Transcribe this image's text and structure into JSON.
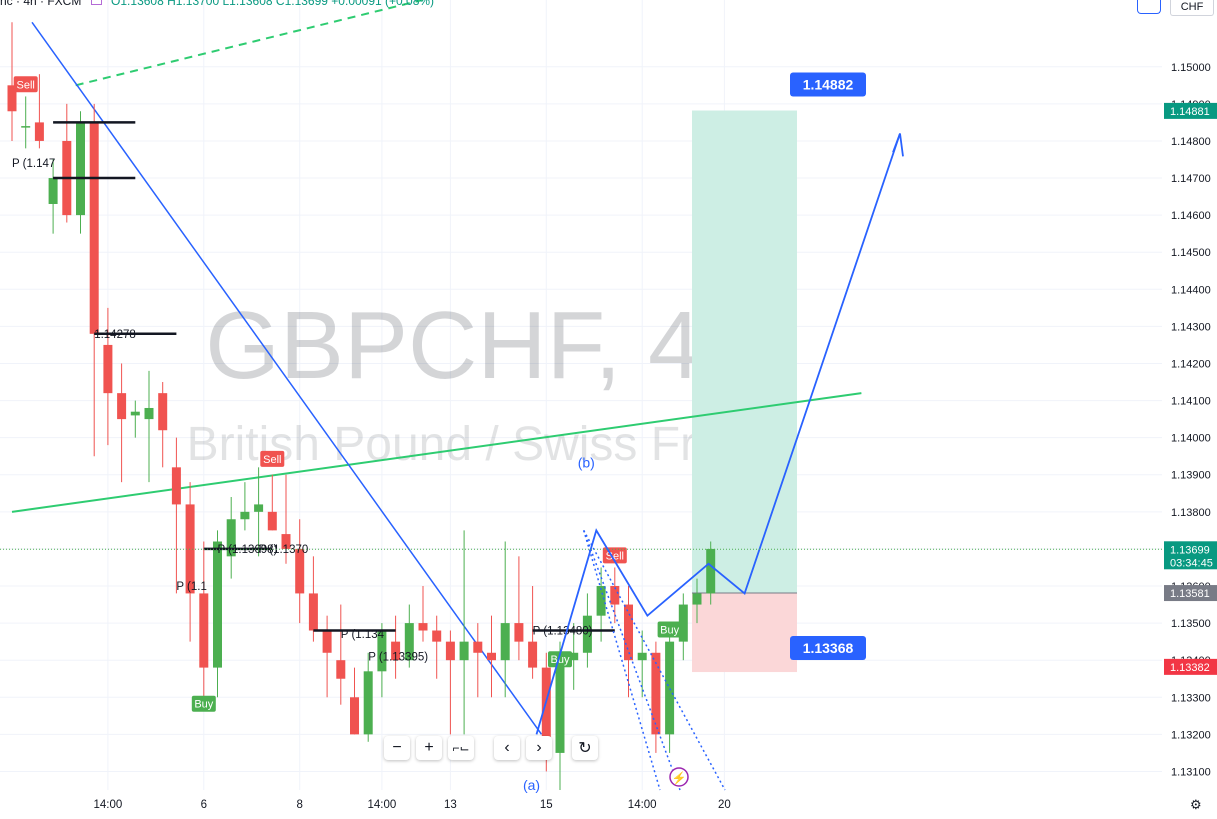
{
  "legend": {
    "symbol": "nc · 4h · FXCM",
    "open": "O1.13608",
    "high": "H1.13700",
    "low": "L1.13608",
    "close": "C1.13699",
    "change": "+0.00091 (+0.08%)"
  },
  "currency_button": "CHF",
  "watermark": {
    "title": "GBPCHF, 4h",
    "subtitle": "British Pound / Swiss Franc"
  },
  "colors": {
    "up": "#4caf50",
    "down": "#f05350",
    "grid": "#f0f3fa",
    "zone_profit": "#cdeee4",
    "zone_loss": "#fbd7d8",
    "pivot": "#2e8b57",
    "trendline": "#2ecc71",
    "projection": "#2962ff"
  },
  "chart_data": {
    "type": "candlestick",
    "symbol": "GBPCHF",
    "timeframe": "4h",
    "ylim": [
      1.1305,
      1.1518
    ],
    "y_ticks": [
      1.131,
      1.132,
      1.133,
      1.134,
      1.135,
      1.136,
      1.137,
      1.138,
      1.139,
      1.14,
      1.141,
      1.142,
      1.143,
      1.144,
      1.145,
      1.146,
      1.147,
      1.148,
      1.149,
      1.15
    ],
    "y_tick_labels": [
      "1.13100",
      "1.13200",
      "1.13300",
      "1.13400",
      "1.13500",
      "1.13600",
      "1.13700",
      "1.13800",
      "1.13900",
      "1.14000",
      "1.14100",
      "1.14200",
      "1.14300",
      "1.14400",
      "1.14500",
      "1.14600",
      "1.14700",
      "1.14800",
      "1.14900",
      "1.15000"
    ],
    "x_ticks": [
      {
        "label": "14:00",
        "i": 7
      },
      {
        "label": "6",
        "i": 14
      },
      {
        "label": "8",
        "i": 21
      },
      {
        "label": "14:00",
        "i": 27
      },
      {
        "label": "13",
        "i": 32
      },
      {
        "label": "15",
        "i": 39
      },
      {
        "label": "14:00",
        "i": 46
      },
      {
        "label": "20",
        "i": 52
      }
    ],
    "candles": [
      [
        1.1495,
        1.1512,
        1.148,
        1.1488
      ],
      [
        1.1484,
        1.1492,
        1.1478,
        1.1484
      ],
      [
        1.1485,
        1.1498,
        1.1478,
        1.148
      ],
      [
        1.1463,
        1.1475,
        1.1455,
        1.147
      ],
      [
        1.148,
        1.149,
        1.1458,
        1.146
      ],
      [
        1.146,
        1.1488,
        1.1455,
        1.1485
      ],
      [
        1.1485,
        1.149,
        1.1395,
        1.1428
      ],
      [
        1.1425,
        1.1435,
        1.1398,
        1.1412
      ],
      [
        1.1412,
        1.142,
        1.1388,
        1.1405
      ],
      [
        1.1406,
        1.141,
        1.14,
        1.1407
      ],
      [
        1.1405,
        1.1418,
        1.1388,
        1.1408
      ],
      [
        1.1412,
        1.1415,
        1.1392,
        1.1402
      ],
      [
        1.1392,
        1.14,
        1.1358,
        1.1382
      ],
      [
        1.1382,
        1.1388,
        1.1345,
        1.1358
      ],
      [
        1.1358,
        1.1372,
        1.1328,
        1.1338
      ],
      [
        1.1338,
        1.1375,
        1.133,
        1.1372
      ],
      [
        1.1368,
        1.1384,
        1.1362,
        1.1378
      ],
      [
        1.1378,
        1.1388,
        1.1375,
        1.138
      ],
      [
        1.138,
        1.1392,
        1.1368,
        1.1382
      ],
      [
        1.138,
        1.139,
        1.1375,
        1.1375
      ],
      [
        1.1374,
        1.139,
        1.1366,
        1.137
      ],
      [
        1.137,
        1.1378,
        1.135,
        1.1358
      ],
      [
        1.1358,
        1.1368,
        1.1345,
        1.1348
      ],
      [
        1.1348,
        1.1352,
        1.133,
        1.1342
      ],
      [
        1.134,
        1.1355,
        1.1328,
        1.1335
      ],
      [
        1.133,
        1.1338,
        1.132,
        1.132
      ],
      [
        1.132,
        1.1342,
        1.1318,
        1.1337
      ],
      [
        1.1337,
        1.135,
        1.133,
        1.1348
      ],
      [
        1.1345,
        1.1352,
        1.1335,
        1.134
      ],
      [
        1.134,
        1.1355,
        1.1338,
        1.135
      ],
      [
        1.135,
        1.136,
        1.1345,
        1.1348
      ],
      [
        1.1348,
        1.1352,
        1.1335,
        1.1345
      ],
      [
        1.1345,
        1.1348,
        1.132,
        1.134
      ],
      [
        1.134,
        1.1375,
        1.132,
        1.1345
      ],
      [
        1.1345,
        1.135,
        1.133,
        1.1342
      ],
      [
        1.1342,
        1.1352,
        1.133,
        1.134
      ],
      [
        1.134,
        1.1372,
        1.133,
        1.135
      ],
      [
        1.135,
        1.1368,
        1.134,
        1.1345
      ],
      [
        1.1345,
        1.136,
        1.1335,
        1.1338
      ],
      [
        1.1338,
        1.1342,
        1.131,
        1.1315
      ],
      [
        1.1315,
        1.1345,
        1.1305,
        1.134
      ],
      [
        1.134,
        1.135,
        1.1332,
        1.1342
      ],
      [
        1.1342,
        1.1358,
        1.1338,
        1.1352
      ],
      [
        1.1352,
        1.1365,
        1.1345,
        1.136
      ],
      [
        1.136,
        1.1365,
        1.135,
        1.1355
      ],
      [
        1.1355,
        1.136,
        1.133,
        1.134
      ],
      [
        1.134,
        1.1348,
        1.133,
        1.1342
      ],
      [
        1.1342,
        1.1345,
        1.1315,
        1.132
      ],
      [
        1.132,
        1.1348,
        1.1315,
        1.1345
      ],
      [
        1.1345,
        1.1358,
        1.134,
        1.1355
      ],
      [
        1.1355,
        1.1362,
        1.135,
        1.1358
      ],
      [
        1.1358,
        1.1372,
        1.1355,
        1.137
      ]
    ],
    "signals": [
      {
        "label": "Sell",
        "i": 1,
        "price": 1.1495,
        "kind": "sell"
      },
      {
        "label": "Sell",
        "i": 19,
        "price": 1.1394,
        "kind": "sell"
      },
      {
        "label": "Buy",
        "i": 14,
        "price": 1.1328,
        "kind": "buy"
      },
      {
        "label": "Buy",
        "i": 40,
        "price": 1.134,
        "kind": "buy"
      },
      {
        "label": "Sell",
        "i": 44,
        "price": 1.1368,
        "kind": "sell"
      },
      {
        "label": "Buy",
        "i": 48,
        "price": 1.1348,
        "kind": "buy"
      }
    ],
    "pivot_labels": [
      {
        "text": "P (1.147",
        "i": 0,
        "price": 1.1474
      },
      {
        "text": "1.14278",
        "i": 6,
        "price": 1.1428
      },
      {
        "text": "P (1.1",
        "i": 12,
        "price": 1.136
      },
      {
        "text": "P (1.13698)",
        "i": 15,
        "price": 1.137
      },
      {
        "text": "P (1.1370",
        "i": 18,
        "price": 1.137
      },
      {
        "text": "P (1.134",
        "i": 24,
        "price": 1.1347
      },
      {
        "text": "P (1.13395)",
        "i": 26,
        "price": 1.1341
      },
      {
        "text": "P (1.13480)",
        "i": 38,
        "price": 1.1348
      }
    ],
    "wave_labels": [
      {
        "text": "(b)",
        "i": 39,
        "price": 1.1392
      },
      {
        "text": "(a)",
        "i": 35,
        "price": 1.1305
      }
    ],
    "position": {
      "entry": 1.13581,
      "target": 1.14882,
      "stop": 1.13368,
      "target_label": "1.14882",
      "stop_label": "1.13368"
    },
    "price_tags": [
      {
        "label": "1.14881",
        "price": 1.14881,
        "color": "#089981"
      },
      {
        "label": "1.13699",
        "price": 1.13699,
        "color": "#089981",
        "sub": "03:34:45"
      },
      {
        "label": "1.13581",
        "price": 1.13581,
        "color": "#787b86"
      },
      {
        "label": "1.13382",
        "price": 1.13382,
        "color": "#f23645"
      }
    ],
    "trendline": {
      "from": [
        0,
        1.138
      ],
      "to": [
        62,
        1.1412
      ]
    },
    "legend_line_dashed": {
      "from": [
        1,
        1.1495
      ],
      "to": [
        19,
        1.1518
      ]
    }
  }
}
